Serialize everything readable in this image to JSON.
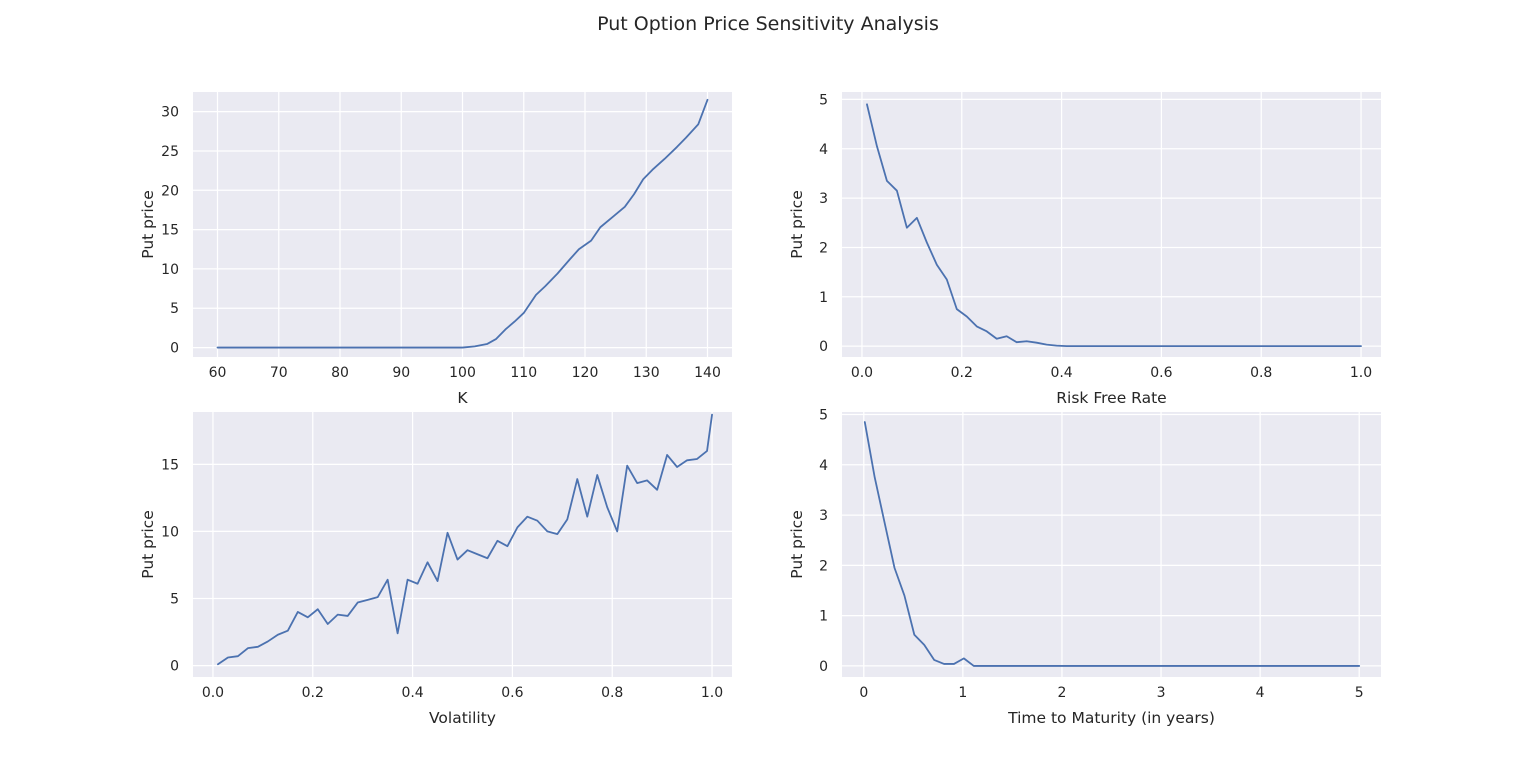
{
  "figure": {
    "title": "Put Option Price Sensitivity Analysis"
  },
  "colors": {
    "background": "#ffffff",
    "axes_face": "#eaeaf2",
    "grid": "#ffffff",
    "line": "#4c72b0",
    "text": "#262626"
  },
  "chart_data": [
    {
      "type": "line",
      "xlabel": "K",
      "ylabel": "Put price",
      "xlim": [
        56.0,
        144.0
      ],
      "ylim": [
        -1.2,
        32.5
      ],
      "xticks": [
        60,
        70,
        80,
        90,
        100,
        110,
        120,
        130,
        140
      ],
      "xtick_labels": [
        "60",
        "70",
        "80",
        "90",
        "100",
        "110",
        "120",
        "130",
        "140"
      ],
      "yticks": [
        0,
        5,
        10,
        15,
        20,
        25,
        30
      ],
      "ytick_labels": [
        "0",
        "5",
        "10",
        "15",
        "20",
        "25",
        "30"
      ],
      "grid": true,
      "series": [
        {
          "x": [
            60,
            62,
            64,
            66,
            68,
            70,
            72,
            74,
            76,
            78,
            80,
            82,
            84,
            86,
            88,
            90,
            92,
            94,
            96,
            98,
            100,
            102,
            104,
            105.5,
            107,
            108.5,
            110,
            112,
            113.5,
            115.5,
            117.5,
            119,
            121,
            122.5,
            124.5,
            126.5,
            128,
            129.5,
            131,
            133,
            135,
            136.5,
            138.5,
            140
          ],
          "y": [
            0,
            0,
            0,
            0,
            0,
            0,
            0,
            0,
            0,
            0,
            0,
            0,
            0,
            0,
            0,
            0,
            0,
            0,
            0,
            0,
            0,
            0.15,
            0.45,
            1.1,
            2.3,
            3.3,
            4.4,
            6.7,
            7.8,
            9.4,
            11.2,
            12.5,
            13.6,
            15.3,
            16.6,
            17.9,
            19.5,
            21.4,
            22.6,
            24.0,
            25.5,
            26.7,
            28.4,
            31.5
          ]
        }
      ]
    },
    {
      "type": "line",
      "xlabel": "Risk Free Rate",
      "ylabel": "Put price",
      "xlim": [
        -0.04,
        1.04
      ],
      "ylim": [
        -0.22,
        5.15
      ],
      "xticks": [
        0.0,
        0.2,
        0.4,
        0.6,
        0.8,
        1.0
      ],
      "xtick_labels": [
        "0.0",
        "0.2",
        "0.4",
        "0.6",
        "0.8",
        "1.0"
      ],
      "yticks": [
        0,
        1,
        2,
        3,
        4,
        5
      ],
      "ytick_labels": [
        "0",
        "1",
        "2",
        "3",
        "4",
        "5"
      ],
      "grid": true,
      "series": [
        {
          "x": [
            0.01,
            0.03,
            0.05,
            0.07,
            0.09,
            0.11,
            0.13,
            0.15,
            0.17,
            0.19,
            0.21,
            0.23,
            0.25,
            0.27,
            0.29,
            0.31,
            0.33,
            0.35,
            0.37,
            0.39,
            0.41,
            0.45,
            0.5,
            0.6,
            0.7,
            0.8,
            0.9,
            1.0
          ],
          "y": [
            4.9,
            4.05,
            3.35,
            3.15,
            2.4,
            2.6,
            2.1,
            1.65,
            1.35,
            0.75,
            0.6,
            0.4,
            0.3,
            0.15,
            0.2,
            0.08,
            0.1,
            0.07,
            0.03,
            0.01,
            0.0,
            0.0,
            0.0,
            0.0,
            0.0,
            0.0,
            0.0,
            0.0
          ]
        }
      ]
    },
    {
      "type": "line",
      "xlabel": "Volatility",
      "ylabel": "Put price",
      "xlim": [
        -0.04,
        1.04
      ],
      "ylim": [
        -0.85,
        18.9
      ],
      "xticks": [
        0.0,
        0.2,
        0.4,
        0.6,
        0.8,
        1.0
      ],
      "xtick_labels": [
        "0.0",
        "0.2",
        "0.4",
        "0.6",
        "0.8",
        "1.0"
      ],
      "yticks": [
        0,
        5,
        10,
        15
      ],
      "ytick_labels": [
        "0",
        "5",
        "10",
        "15"
      ],
      "grid": true,
      "series": [
        {
          "x": [
            0.01,
            0.03,
            0.05,
            0.07,
            0.09,
            0.11,
            0.13,
            0.15,
            0.17,
            0.19,
            0.21,
            0.23,
            0.25,
            0.27,
            0.29,
            0.31,
            0.33,
            0.35,
            0.37,
            0.39,
            0.41,
            0.43,
            0.45,
            0.47,
            0.49,
            0.51,
            0.53,
            0.55,
            0.57,
            0.59,
            0.61,
            0.63,
            0.65,
            0.67,
            0.69,
            0.71,
            0.73,
            0.75,
            0.77,
            0.79,
            0.81,
            0.83,
            0.85,
            0.87,
            0.89,
            0.91,
            0.93,
            0.95,
            0.97,
            0.99,
            1.0
          ],
          "y": [
            0.1,
            0.6,
            0.7,
            1.3,
            1.4,
            1.8,
            2.3,
            2.6,
            4.0,
            3.6,
            4.2,
            3.1,
            3.8,
            3.7,
            4.7,
            4.9,
            5.1,
            6.4,
            2.4,
            6.4,
            6.1,
            7.7,
            6.3,
            9.9,
            7.9,
            8.6,
            8.3,
            8.0,
            9.3,
            8.9,
            10.3,
            11.1,
            10.8,
            10.0,
            9.8,
            10.9,
            13.9,
            11.1,
            14.2,
            11.8,
            10.0,
            14.9,
            13.6,
            13.8,
            13.1,
            15.7,
            14.8,
            15.3,
            15.4,
            16.0,
            18.7
          ]
        }
      ]
    },
    {
      "type": "line",
      "xlabel": "Time to Maturity (in years)",
      "ylabel": "Put price",
      "xlim": [
        -0.22,
        5.22
      ],
      "ylim": [
        -0.22,
        5.05
      ],
      "xticks": [
        0,
        1,
        2,
        3,
        4,
        5
      ],
      "xtick_labels": [
        "0",
        "1",
        "2",
        "3",
        "4",
        "5"
      ],
      "yticks": [
        0,
        1,
        2,
        3,
        4,
        5
      ],
      "ytick_labels": [
        "0",
        "1",
        "2",
        "3",
        "4",
        "5"
      ],
      "grid": true,
      "series": [
        {
          "x": [
            0.01,
            0.11,
            0.21,
            0.31,
            0.41,
            0.51,
            0.61,
            0.71,
            0.81,
            0.91,
            1.01,
            1.11,
            1.5,
            2.0,
            2.5,
            3.0,
            3.5,
            4.0,
            4.5,
            5.0
          ],
          "y": [
            4.85,
            3.75,
            2.85,
            1.95,
            1.4,
            0.62,
            0.42,
            0.12,
            0.04,
            0.04,
            0.15,
            0.0,
            0.0,
            0.0,
            0.0,
            0.0,
            0.0,
            0.0,
            0.0,
            0.0
          ]
        }
      ]
    }
  ]
}
